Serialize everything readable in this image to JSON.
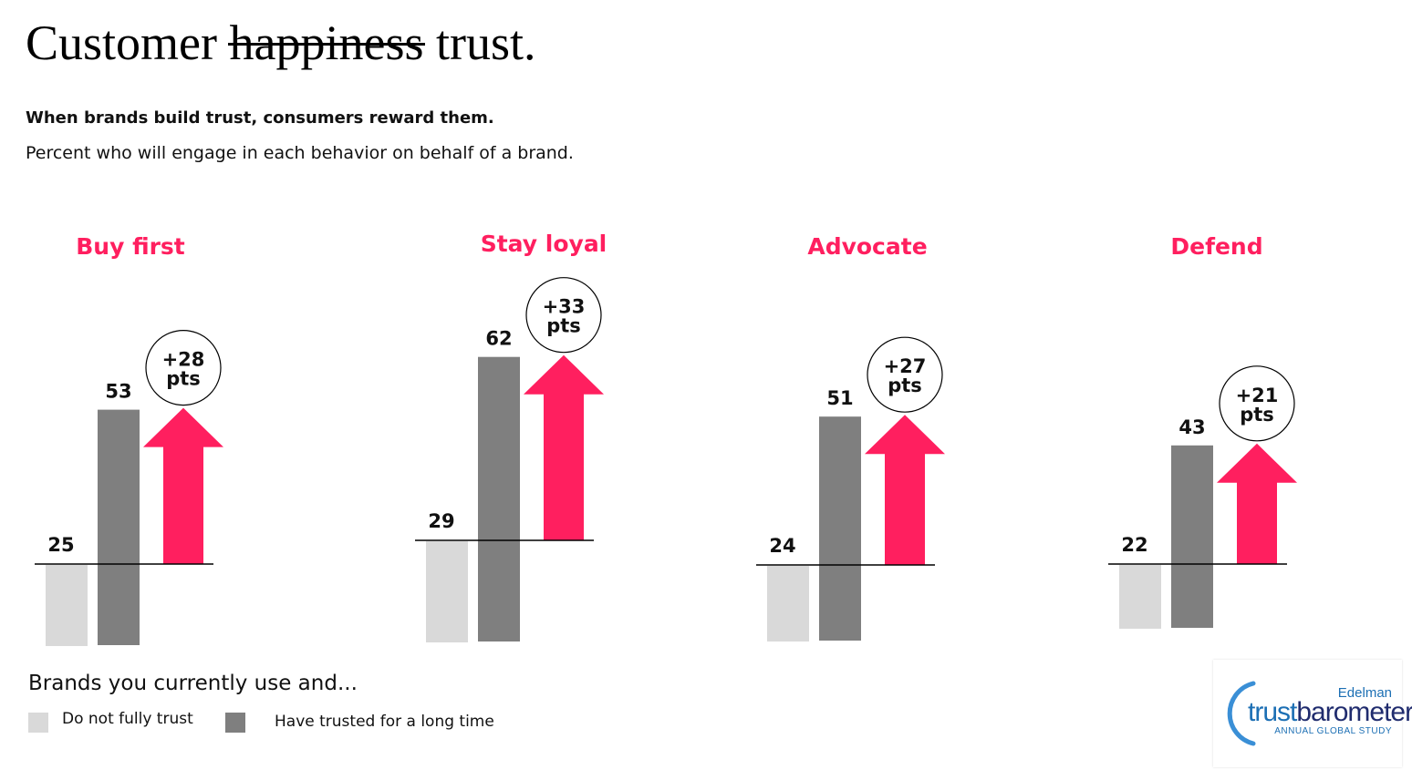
{
  "header": {
    "title_before": "Customer",
    "title_struck": "happiness",
    "title_after": "trust.",
    "subtitle_bold": "When brands build trust, consumers reward them.",
    "subtitle": "Percent who will engage in each behavior on behalf of a brand."
  },
  "colors": {
    "accent": "#ff1f5f",
    "do_not_fully_trust": "#d9d9d9",
    "have_trusted": "#7f7f7f"
  },
  "chart_data": {
    "type": "bar",
    "categories": [
      "Buy first",
      "Stay loyal",
      "Advocate",
      "Defend"
    ],
    "series": [
      {
        "name": "Do not fully trust",
        "values": [
          25,
          29,
          24,
          22
        ]
      },
      {
        "name": "Have trusted for a long time",
        "values": [
          53,
          62,
          51,
          43
        ]
      }
    ],
    "differences": [
      {
        "value": "+28",
        "unit": "pts"
      },
      {
        "value": "+33",
        "unit": "pts"
      },
      {
        "value": "+27",
        "unit": "pts"
      },
      {
        "value": "+21",
        "unit": "pts"
      }
    ],
    "legend": {
      "title": "Brands you currently use and...",
      "position": "bottom-left"
    }
  },
  "logo": {
    "brand": "Edelman",
    "word_part1": "trust",
    "word_part2": "barometer",
    "tagline": "ANNUAL GLOBAL STUDY"
  }
}
